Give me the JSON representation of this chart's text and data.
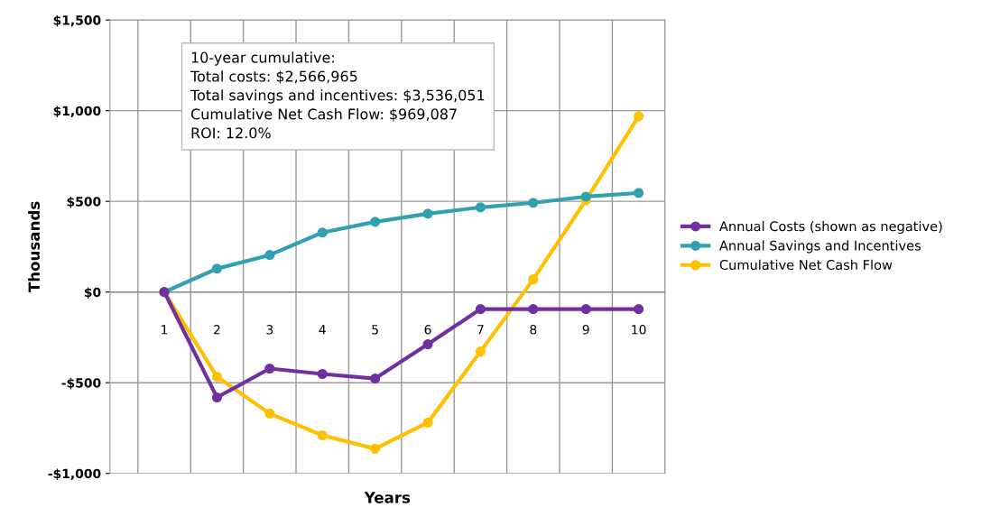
{
  "chart_data": {
    "type": "line",
    "xlabel": "Years",
    "ylabel": "Thousands",
    "categories": [
      "1",
      "2",
      "3",
      "4",
      "5",
      "6",
      "7",
      "8",
      "9",
      "10"
    ],
    "series": [
      {
        "name": "Annual Costs (shown as negative)",
        "color": "#7030a0",
        "values": [
          0,
          -581,
          -422,
          -452,
          -477,
          -288,
          -94,
          -94,
          -94,
          -94
        ]
      },
      {
        "name": "Annual Savings and Incentives",
        "color": "#31a0b0",
        "values": [
          0,
          129,
          204,
          328,
          387,
          432,
          467,
          492,
          526,
          546
        ]
      },
      {
        "name": "Cumulative Net Cash Flow",
        "color": "#ffc000",
        "values": [
          0,
          -467,
          -670,
          -790,
          -864,
          -720,
          -328,
          70,
          507,
          969
        ]
      }
    ],
    "ylim": [
      -1000,
      1500
    ],
    "yticks": [
      {
        "value": -1000,
        "label": "-$1,000"
      },
      {
        "value": -500,
        "label": "-$500"
      },
      {
        "value": 0,
        "label": "$0"
      },
      {
        "value": 500,
        "label": "$500"
      },
      {
        "value": 1000,
        "label": "$1,000"
      },
      {
        "value": 1500,
        "label": "$1,500"
      }
    ],
    "grid": true,
    "legend": "right",
    "marker": "circle",
    "line_style": "solid",
    "annotations": [
      "10-year cumulative:\nTotal costs: $2,566,965\nTotal savings and incentives: $3,536,051\nCumulative Net Cash Flow: $969,087\nROI: 12.0%"
    ]
  }
}
